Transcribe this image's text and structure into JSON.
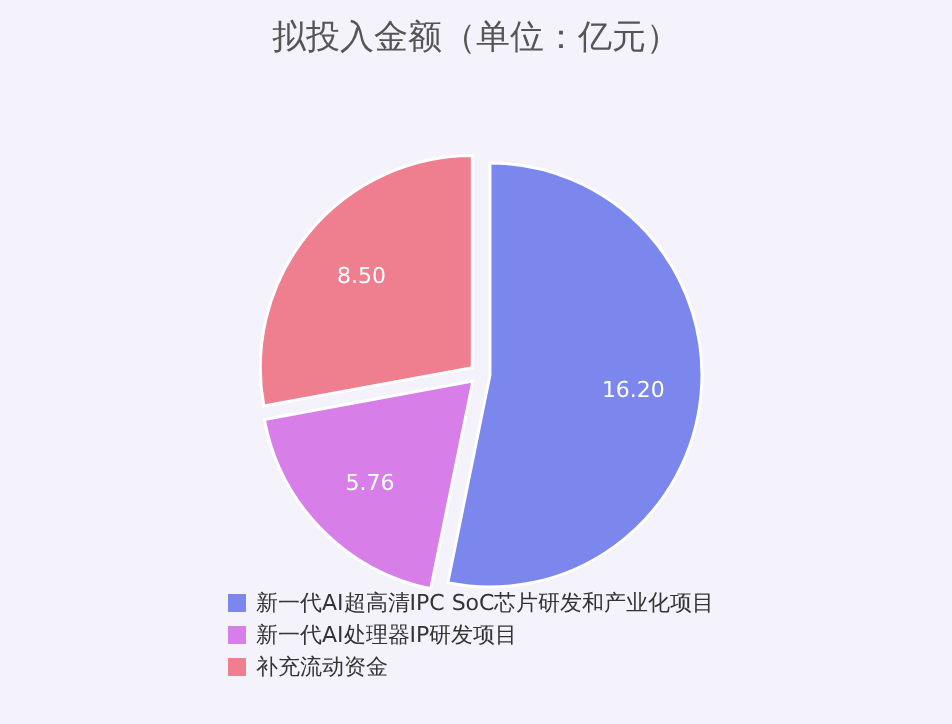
{
  "chart_data": {
    "type": "pie",
    "title": "拟投入金额（单位：亿元）",
    "categories": [
      "新一代AI超高清IPC SoC芯片研发和产业化项目",
      "新一代AI处理器IP研发项目",
      "补充流动资金"
    ],
    "values": [
      16.2,
      5.76,
      8.5
    ],
    "colors": [
      "#7b87ec",
      "#d87ee9",
      "#ef7e8f"
    ],
    "value_labels": [
      "16.20",
      "5.76",
      "8.50"
    ],
    "legend": "bottom"
  }
}
